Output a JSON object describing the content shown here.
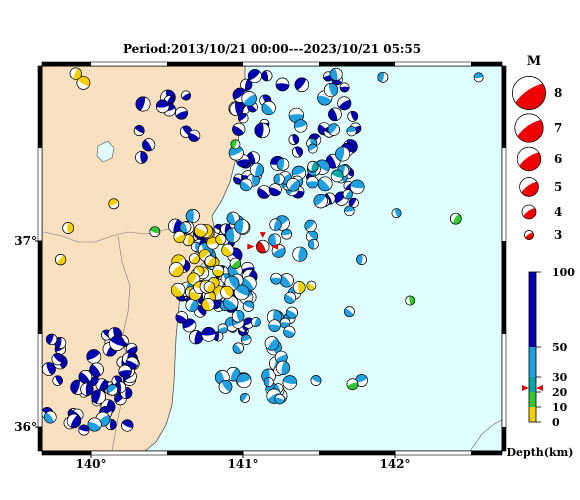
{
  "title": "Period:2013/10/21 00:00---2023/10/21 05:55",
  "map": {
    "lon_labels": [
      "140°",
      "141°",
      "142°"
    ],
    "lat_labels": [
      "37°",
      "36°"
    ],
    "colors": {
      "land": "#f8e0c0",
      "sea": "#e0ffff",
      "coast": "#555555"
    }
  },
  "magnitude_legend": {
    "title": "M",
    "items": [
      {
        "label": "8",
        "magnitude": 8
      },
      {
        "label": "7",
        "magnitude": 7
      },
      {
        "label": "6",
        "magnitude": 6
      },
      {
        "label": "5",
        "magnitude": 5
      },
      {
        "label": "4",
        "magnitude": 4
      },
      {
        "label": "3",
        "magnitude": 3
      }
    ]
  },
  "depth_scale": {
    "title": "Depth(km)",
    "ticks": [
      "100",
      "50",
      "30",
      "20",
      "10",
      "0"
    ],
    "bands": [
      {
        "from": 0,
        "to": 10,
        "color": "#f2d000"
      },
      {
        "from": 10,
        "to": 20,
        "color": "#30c830"
      },
      {
        "from": 20,
        "to": 30,
        "color": "#00a8a8"
      },
      {
        "from": 30,
        "to": 50,
        "color": "#20a0e0"
      },
      {
        "from": 50,
        "to": 100,
        "color": "#0000b0"
      }
    ],
    "highlight_depth": 25,
    "highlight_color": "#dd0000"
  },
  "highlight_event": {
    "lon": 141.13,
    "lat": 36.97,
    "magnitude": 5.0,
    "depth": 25
  }
}
